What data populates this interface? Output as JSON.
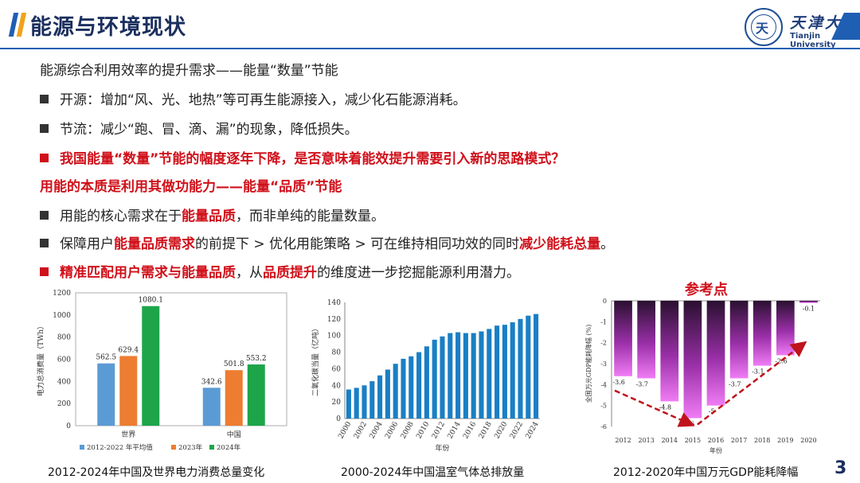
{
  "header": {
    "title": "能源与环境现状",
    "university_cn": "天津大学",
    "university_en": "Tianjin University"
  },
  "content": {
    "section1_heading": "能源综合利用效率的提升需求——能量“数量”节能",
    "b1": "开源：增加“风、光、地热”等可再生能源接入，减少化石能源消耗。",
    "b2": "节流：减少“跑、冒、滴、漏”的现象，降低损失。",
    "b3": "我国能量“数量”节能的幅度逐年下降，是否意味着能效提升需要引入新的思路模式？",
    "section2_heading": "用能的本质是利用其做功能力——能量“品质”节能",
    "b4_pre": "用能的核心需求在于",
    "b4_hl": "能量品质",
    "b4_post": "，而非单纯的能量数量。",
    "b5_pre": "保障用户",
    "b5_hl1": "能量品质需求",
    "b5_mid": "的前提下 > 优化用能策略 > 可在维持相同功效的同时",
    "b5_hl2": "减少能耗总量",
    "b5_post": "。",
    "b6_hl1": "精准匹配用户需求与能量品质",
    "b6_mid": "，从",
    "b6_hl2": "品质提升",
    "b6_post": "的维度进一步挖掘能源利用潜力。",
    "reference_label": "参考点",
    "page_number": "3"
  },
  "colors": {
    "accent_blue": "#1f5fb3",
    "accent_orange": "#f0a21b",
    "highlight_red": "#d0101a"
  },
  "chart_data": [
    {
      "type": "bar",
      "caption": "2012-2024年中国及世界电力消费总量变化",
      "ylabel": "电力总消费量（TWh）",
      "ylim": [
        0,
        1200
      ],
      "yticks": [
        0,
        200,
        400,
        600,
        800,
        1000,
        1200
      ],
      "categories": [
        "世界",
        "中国"
      ],
      "series": [
        {
          "name": "2012-2022 年平均值",
          "color": "#5b9bd5",
          "values": [
            562.5,
            342.6
          ]
        },
        {
          "name": "2023年",
          "color": "#ed7d31",
          "values": [
            629.4,
            501.8
          ]
        },
        {
          "name": "2024年",
          "color": "#1ea54a",
          "values": [
            1080.1,
            553.2
          ]
        }
      ]
    },
    {
      "type": "bar",
      "caption": "2000-2024年中国温室气体总排放量",
      "ylabel": "二氧化碳当量（亿吨）",
      "xlabel": "年份",
      "ylim": [
        0,
        140
      ],
      "yticks": [
        0,
        20,
        40,
        60,
        80,
        100,
        120,
        140
      ],
      "x_tick_labels": [
        "2000",
        "2002",
        "2004",
        "2006",
        "2008",
        "2010",
        "2012",
        "2014",
        "2016",
        "2018",
        "2020",
        "2022",
        "2024"
      ],
      "x": [
        2000,
        2001,
        2002,
        2003,
        2004,
        2005,
        2006,
        2007,
        2008,
        2009,
        2010,
        2011,
        2012,
        2013,
        2014,
        2015,
        2016,
        2017,
        2018,
        2019,
        2020,
        2021,
        2022,
        2023,
        2024
      ],
      "values": [
        35,
        37,
        40,
        45,
        52,
        59,
        66,
        72,
        75,
        80,
        87,
        95,
        99,
        103,
        104,
        103,
        103,
        105,
        108,
        112,
        113,
        116,
        120,
        124,
        126
      ],
      "color": "#1a7fc4"
    },
    {
      "type": "bar",
      "caption": "2012-2020年中国万元GDP能耗降幅",
      "ylabel": "全国万元GDP能耗降幅 (%)",
      "xlabel": "年份",
      "ylim": [
        -6,
        0
      ],
      "yticks": [
        0,
        -1,
        -2,
        -3,
        -4,
        -5,
        -6
      ],
      "categories": [
        "2012",
        "2013",
        "2014",
        "2015",
        "2016",
        "2017",
        "2018",
        "2019",
        "2020"
      ],
      "values": [
        -3.6,
        -3.7,
        -4.8,
        -5.6,
        -5,
        -3.7,
        -3.1,
        -2.6,
        -0.1
      ],
      "value_labels": [
        "-3.6",
        "-3.7",
        "-4.8",
        "-5.6",
        "-5",
        "-3.7",
        "-3.1",
        "-2.6",
        "-0.1"
      ]
    }
  ]
}
